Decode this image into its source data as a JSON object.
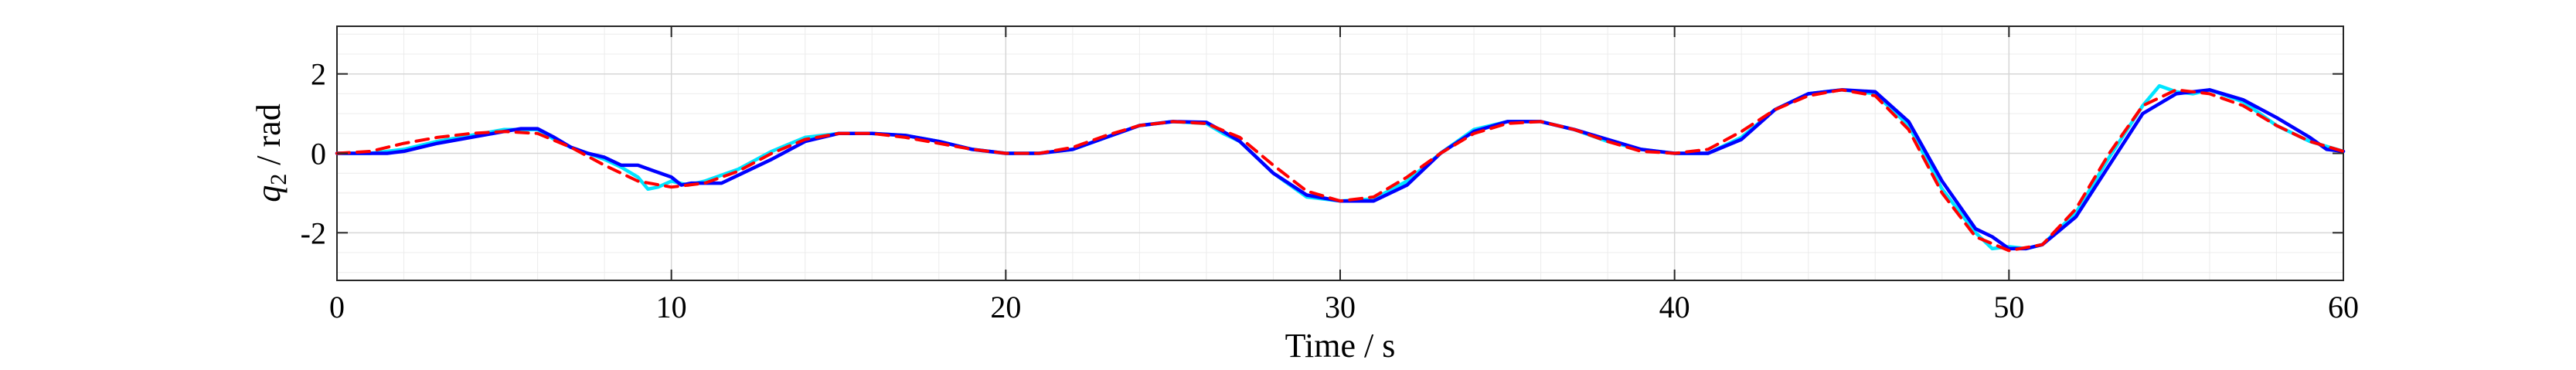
{
  "chart_data": {
    "type": "line",
    "xlabel": "Time / s",
    "ylabel": "q",
    "ylabel_sub": "2",
    "ylabel_unit": " / rad",
    "xlim": [
      0,
      60
    ],
    "ylim": [
      -3.2,
      3.2
    ],
    "xticks": [
      0,
      10,
      20,
      30,
      40,
      50,
      60
    ],
    "yticks": [
      -2,
      0,
      2
    ],
    "grid": true,
    "series": [
      {
        "color": "#00e5ff",
        "style": "solid",
        "x": [
          0,
          1,
          2,
          3,
          4,
          5,
          6,
          6.5,
          7,
          7.5,
          8,
          8.5,
          9,
          9.3,
          9.6,
          10,
          10.5,
          11,
          11.5,
          12,
          13,
          14,
          15,
          16,
          17,
          18,
          19,
          20,
          21,
          22,
          23,
          24,
          25,
          26,
          26.5,
          27,
          28,
          29,
          30,
          31,
          32,
          33,
          34,
          35,
          36,
          37,
          38,
          39,
          40,
          41,
          42,
          43,
          44,
          45,
          46,
          47,
          48,
          49,
          49.5,
          50,
          50.5,
          51,
          52,
          53,
          54,
          54.5,
          55,
          55.5,
          56,
          57,
          58,
          59,
          60
        ],
        "y": [
          0,
          0,
          0.1,
          0.3,
          0.45,
          0.6,
          0.6,
          0.35,
          0.15,
          0.0,
          -0.15,
          -0.35,
          -0.6,
          -0.9,
          -0.85,
          -0.7,
          -0.8,
          -0.7,
          -0.55,
          -0.4,
          0.05,
          0.4,
          0.5,
          0.5,
          0.45,
          0.3,
          0.1,
          0.0,
          0.0,
          0.1,
          0.4,
          0.7,
          0.8,
          0.75,
          0.5,
          0.3,
          -0.5,
          -1.1,
          -1.2,
          -1.15,
          -0.7,
          0.0,
          0.6,
          0.8,
          0.8,
          0.6,
          0.3,
          0.1,
          0.0,
          0.0,
          0.4,
          1.1,
          1.5,
          1.6,
          1.5,
          0.7,
          -0.9,
          -2.0,
          -2.4,
          -2.35,
          -2.4,
          -2.3,
          -1.5,
          -0.1,
          1.2,
          1.7,
          1.55,
          1.5,
          1.6,
          1.3,
          0.7,
          0.3,
          0.05
        ]
      },
      {
        "color": "#0000ff",
        "style": "solid",
        "x": [
          0,
          1,
          1.5,
          2,
          3,
          4,
          5,
          5.5,
          6,
          6.5,
          7,
          7.5,
          8,
          8.5,
          9,
          9.5,
          10,
          10.3,
          10.6,
          11,
          11.5,
          12,
          13,
          14,
          15,
          16,
          17,
          18,
          19,
          20,
          21,
          22,
          23,
          24,
          25,
          26,
          26.5,
          27,
          28,
          29,
          30,
          31,
          32,
          33,
          34,
          35,
          36,
          37,
          38,
          39,
          40,
          41,
          42,
          43,
          44,
          45,
          46,
          47,
          48,
          49,
          49.5,
          50,
          50.5,
          51,
          52,
          53,
          54,
          55,
          56,
          57,
          58,
          59,
          59.5,
          60
        ],
        "y": [
          0,
          0,
          0,
          0.05,
          0.25,
          0.4,
          0.55,
          0.62,
          0.62,
          0.4,
          0.15,
          0.0,
          -0.1,
          -0.3,
          -0.3,
          -0.45,
          -0.6,
          -0.8,
          -0.75,
          -0.75,
          -0.75,
          -0.55,
          -0.15,
          0.3,
          0.5,
          0.5,
          0.45,
          0.3,
          0.1,
          0.0,
          0.0,
          0.1,
          0.4,
          0.7,
          0.8,
          0.78,
          0.55,
          0.3,
          -0.5,
          -1.05,
          -1.2,
          -1.2,
          -0.8,
          0.0,
          0.55,
          0.8,
          0.8,
          0.6,
          0.35,
          0.1,
          0.0,
          0.0,
          0.35,
          1.1,
          1.5,
          1.6,
          1.55,
          0.8,
          -0.7,
          -1.9,
          -2.1,
          -2.4,
          -2.4,
          -2.3,
          -1.6,
          -0.3,
          1.0,
          1.5,
          1.6,
          1.35,
          0.9,
          0.4,
          0.1,
          0.05
        ]
      },
      {
        "color": "#ff0000",
        "style": "dashed",
        "x": [
          0,
          1,
          2,
          3,
          4,
          5,
          6,
          7,
          8,
          9,
          10,
          11,
          12,
          13,
          14,
          15,
          16,
          17,
          18,
          19,
          20,
          21,
          22,
          23,
          24,
          25,
          26,
          27,
          28,
          29,
          30,
          31,
          32,
          33,
          34,
          35,
          36,
          37,
          38,
          39,
          40,
          41,
          42,
          43,
          44,
          45,
          46,
          47,
          48,
          49,
          50,
          51,
          52,
          53,
          54,
          55,
          56,
          57,
          58,
          59,
          60
        ],
        "y": [
          0,
          0.05,
          0.25,
          0.4,
          0.5,
          0.55,
          0.5,
          0.15,
          -0.3,
          -0.7,
          -0.85,
          -0.75,
          -0.45,
          0.0,
          0.35,
          0.5,
          0.5,
          0.4,
          0.25,
          0.1,
          0.0,
          0.0,
          0.15,
          0.45,
          0.7,
          0.8,
          0.75,
          0.4,
          -0.3,
          -0.95,
          -1.2,
          -1.1,
          -0.6,
          0.0,
          0.5,
          0.75,
          0.8,
          0.6,
          0.3,
          0.05,
          0.0,
          0.1,
          0.55,
          1.1,
          1.45,
          1.6,
          1.45,
          0.6,
          -1.0,
          -2.1,
          -2.45,
          -2.3,
          -1.4,
          0.0,
          1.2,
          1.6,
          1.5,
          1.2,
          0.7,
          0.3,
          0.05
        ]
      }
    ]
  }
}
